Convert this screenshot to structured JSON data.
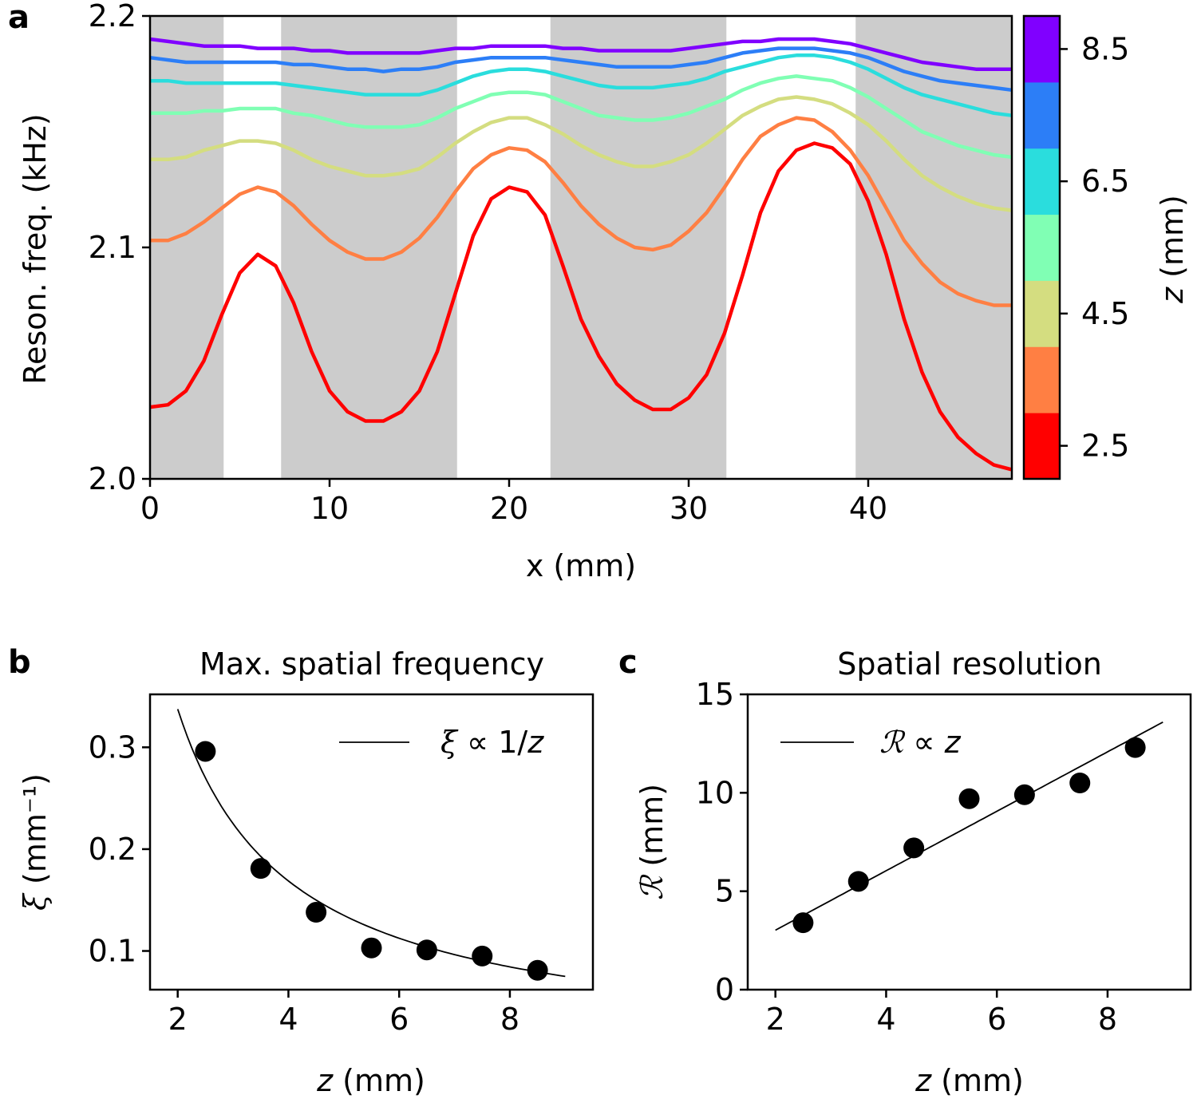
{
  "chart_data": [
    {
      "panel": "a",
      "type": "line",
      "title": "",
      "xlabel": "x (mm)",
      "ylabel": "Reson. freq. (kHz)",
      "xlim": [
        0,
        48
      ],
      "ylim": [
        2.0,
        2.2
      ],
      "xticks": [
        0,
        10,
        20,
        30,
        40
      ],
      "xtick_labels": [
        "0",
        "10",
        "20",
        "30",
        "40"
      ],
      "yticks": [
        2.0,
        2.1,
        2.2
      ],
      "ytick_labels": [
        "2.0",
        "2.1",
        "2.2"
      ],
      "shaded_regions_x": [
        [
          0,
          4.1
        ],
        [
          7.3,
          17.1
        ],
        [
          22.3,
          32.1
        ],
        [
          39.3,
          48
        ]
      ],
      "shade_color": "#cccccc",
      "x": [
        0,
        1,
        2,
        3,
        4,
        5,
        6,
        7,
        8,
        9,
        10,
        11,
        12,
        13,
        14,
        15,
        16,
        17,
        18,
        19,
        20,
        21,
        22,
        23,
        24,
        25,
        26,
        27,
        28,
        29,
        30,
        31,
        32,
        33,
        34,
        35,
        36,
        37,
        38,
        39,
        40,
        41,
        42,
        43,
        44,
        45,
        46,
        47,
        48
      ],
      "series": [
        {
          "name": "2.5",
          "color": "#ff0000",
          "values": [
            2.031,
            2.032,
            2.038,
            2.051,
            2.071,
            2.089,
            2.097,
            2.092,
            2.076,
            2.055,
            2.038,
            2.029,
            2.025,
            2.025,
            2.029,
            2.038,
            2.055,
            2.08,
            2.105,
            2.121,
            2.126,
            2.124,
            2.114,
            2.092,
            2.069,
            2.053,
            2.041,
            2.034,
            2.03,
            2.03,
            2.035,
            2.045,
            2.063,
            2.088,
            2.115,
            2.133,
            2.142,
            2.145,
            2.143,
            2.136,
            2.12,
            2.097,
            2.069,
            2.046,
            2.029,
            2.018,
            2.011,
            2.006,
            2.004
          ]
        },
        {
          "name": "3.5",
          "color": "#ff7f43",
          "values": [
            2.103,
            2.103,
            2.106,
            2.111,
            2.117,
            2.123,
            2.126,
            2.124,
            2.118,
            2.11,
            2.103,
            2.098,
            2.095,
            2.095,
            2.098,
            2.104,
            2.113,
            2.124,
            2.134,
            2.14,
            2.143,
            2.142,
            2.137,
            2.128,
            2.118,
            2.11,
            2.104,
            2.1,
            2.099,
            2.101,
            2.107,
            2.115,
            2.126,
            2.138,
            2.148,
            2.153,
            2.156,
            2.155,
            2.15,
            2.142,
            2.131,
            2.117,
            2.103,
            2.093,
            2.085,
            2.08,
            2.077,
            2.075,
            2.075
          ]
        },
        {
          "name": "4.5",
          "color": "#d4dd80",
          "values": [
            2.138,
            2.138,
            2.139,
            2.142,
            2.144,
            2.146,
            2.146,
            2.145,
            2.142,
            2.138,
            2.135,
            2.133,
            2.131,
            2.131,
            2.132,
            2.134,
            2.139,
            2.145,
            2.15,
            2.154,
            2.156,
            2.156,
            2.153,
            2.149,
            2.144,
            2.14,
            2.137,
            2.135,
            2.135,
            2.137,
            2.14,
            2.145,
            2.151,
            2.157,
            2.161,
            2.164,
            2.165,
            2.164,
            2.162,
            2.158,
            2.153,
            2.146,
            2.138,
            2.131,
            2.126,
            2.122,
            2.119,
            2.117,
            2.116
          ]
        },
        {
          "name": "5.5",
          "color": "#80ffb4",
          "values": [
            2.158,
            2.158,
            2.158,
            2.159,
            2.159,
            2.16,
            2.16,
            2.16,
            2.158,
            2.157,
            2.155,
            2.153,
            2.152,
            2.152,
            2.152,
            2.153,
            2.156,
            2.16,
            2.163,
            2.166,
            2.167,
            2.167,
            2.166,
            2.163,
            2.16,
            2.157,
            2.156,
            2.155,
            2.155,
            2.156,
            2.158,
            2.161,
            2.164,
            2.168,
            2.171,
            2.173,
            2.174,
            2.173,
            2.172,
            2.169,
            2.165,
            2.16,
            2.155,
            2.15,
            2.147,
            2.144,
            2.142,
            2.14,
            2.139
          ]
        },
        {
          "name": "6.5",
          "color": "#2adddd",
          "values": [
            2.172,
            2.172,
            2.171,
            2.171,
            2.171,
            2.171,
            2.171,
            2.171,
            2.17,
            2.169,
            2.168,
            2.167,
            2.166,
            2.166,
            2.166,
            2.166,
            2.168,
            2.171,
            2.174,
            2.176,
            2.177,
            2.177,
            2.176,
            2.174,
            2.172,
            2.17,
            2.169,
            2.169,
            2.169,
            2.17,
            2.171,
            2.173,
            2.176,
            2.178,
            2.18,
            2.182,
            2.183,
            2.183,
            2.182,
            2.18,
            2.177,
            2.173,
            2.169,
            2.166,
            2.164,
            2.162,
            2.16,
            2.158,
            2.157
          ]
        },
        {
          "name": "7.5",
          "color": "#2c7ef7",
          "values": [
            2.182,
            2.181,
            2.18,
            2.18,
            2.18,
            2.18,
            2.18,
            2.18,
            2.179,
            2.179,
            2.178,
            2.177,
            2.177,
            2.176,
            2.177,
            2.177,
            2.178,
            2.18,
            2.181,
            2.182,
            2.182,
            2.182,
            2.182,
            2.181,
            2.18,
            2.179,
            2.178,
            2.178,
            2.178,
            2.178,
            2.179,
            2.18,
            2.182,
            2.184,
            2.185,
            2.186,
            2.186,
            2.186,
            2.185,
            2.184,
            2.182,
            2.179,
            2.176,
            2.174,
            2.172,
            2.171,
            2.17,
            2.169,
            2.168
          ]
        },
        {
          "name": "8.5",
          "color": "#8000ff",
          "values": [
            2.19,
            2.189,
            2.188,
            2.187,
            2.187,
            2.187,
            2.186,
            2.186,
            2.186,
            2.185,
            2.185,
            2.184,
            2.184,
            2.184,
            2.184,
            2.184,
            2.185,
            2.186,
            2.186,
            2.187,
            2.187,
            2.187,
            2.187,
            2.186,
            2.186,
            2.185,
            2.185,
            2.185,
            2.185,
            2.185,
            2.186,
            2.187,
            2.188,
            2.189,
            2.189,
            2.19,
            2.19,
            2.19,
            2.189,
            2.188,
            2.186,
            2.184,
            2.182,
            2.18,
            2.179,
            2.178,
            2.177,
            2.177,
            2.177
          ]
        }
      ],
      "colorbar": {
        "label": "z (mm)",
        "ticks": [
          "2.5",
          "4.5",
          "6.5",
          "8.5"
        ],
        "colors": [
          "#ff0000",
          "#ff7f43",
          "#d4dd80",
          "#80ffb4",
          "#2adddd",
          "#2c7ef7",
          "#8000ff"
        ]
      }
    },
    {
      "panel": "b",
      "type": "scatter",
      "title": "Max. spatial frequency",
      "xlabel_italic": "z",
      "xlabel_rest": " (mm)",
      "ylabel_symbol": "ξ",
      "ylabel_rest": " (mm⁻¹)",
      "xlim": [
        1.5,
        9.5
      ],
      "ylim": [
        0.062,
        0.352
      ],
      "xticks": [
        2,
        4,
        6,
        8
      ],
      "xtick_labels": [
        "2",
        "4",
        "6",
        "8"
      ],
      "yticks": [
        0.1,
        0.2,
        0.3
      ],
      "ytick_labels": [
        "0.1",
        "0.2",
        "0.3"
      ],
      "x": [
        2.5,
        3.5,
        4.5,
        5.5,
        6.5,
        7.5,
        8.5
      ],
      "y": [
        0.296,
        0.181,
        0.138,
        0.103,
        0.101,
        0.095,
        0.081
      ],
      "fit": {
        "model": "inverse",
        "k": 0.675,
        "x_range": [
          2.0,
          9.0
        ],
        "legend_symbol": "ξ",
        "legend_rest": " ∝ 1/",
        "legend_var": "z"
      }
    },
    {
      "panel": "c",
      "type": "scatter",
      "title": "Spatial resolution",
      "xlabel_italic": "z",
      "xlabel_rest": " (mm)",
      "ylabel_symbol": "ℛ",
      "ylabel_rest": " (mm)",
      "xlim": [
        1.5,
        9.5
      ],
      "ylim": [
        0,
        15
      ],
      "xticks": [
        2,
        4,
        6,
        8
      ],
      "xtick_labels": [
        "2",
        "4",
        "6",
        "8"
      ],
      "yticks": [
        0,
        5,
        10,
        15
      ],
      "ytick_labels": [
        "0",
        "5",
        "10",
        "15"
      ],
      "x": [
        2.5,
        3.5,
        4.5,
        5.5,
        6.5,
        7.5,
        8.5
      ],
      "y": [
        3.4,
        5.5,
        7.2,
        9.7,
        9.9,
        10.5,
        12.3
      ],
      "fit": {
        "model": "linear",
        "k": 1.51,
        "x_range": [
          2.0,
          9.0
        ],
        "legend_symbol": "ℛ",
        "legend_rest": " ∝ ",
        "legend_var": "z"
      }
    }
  ]
}
